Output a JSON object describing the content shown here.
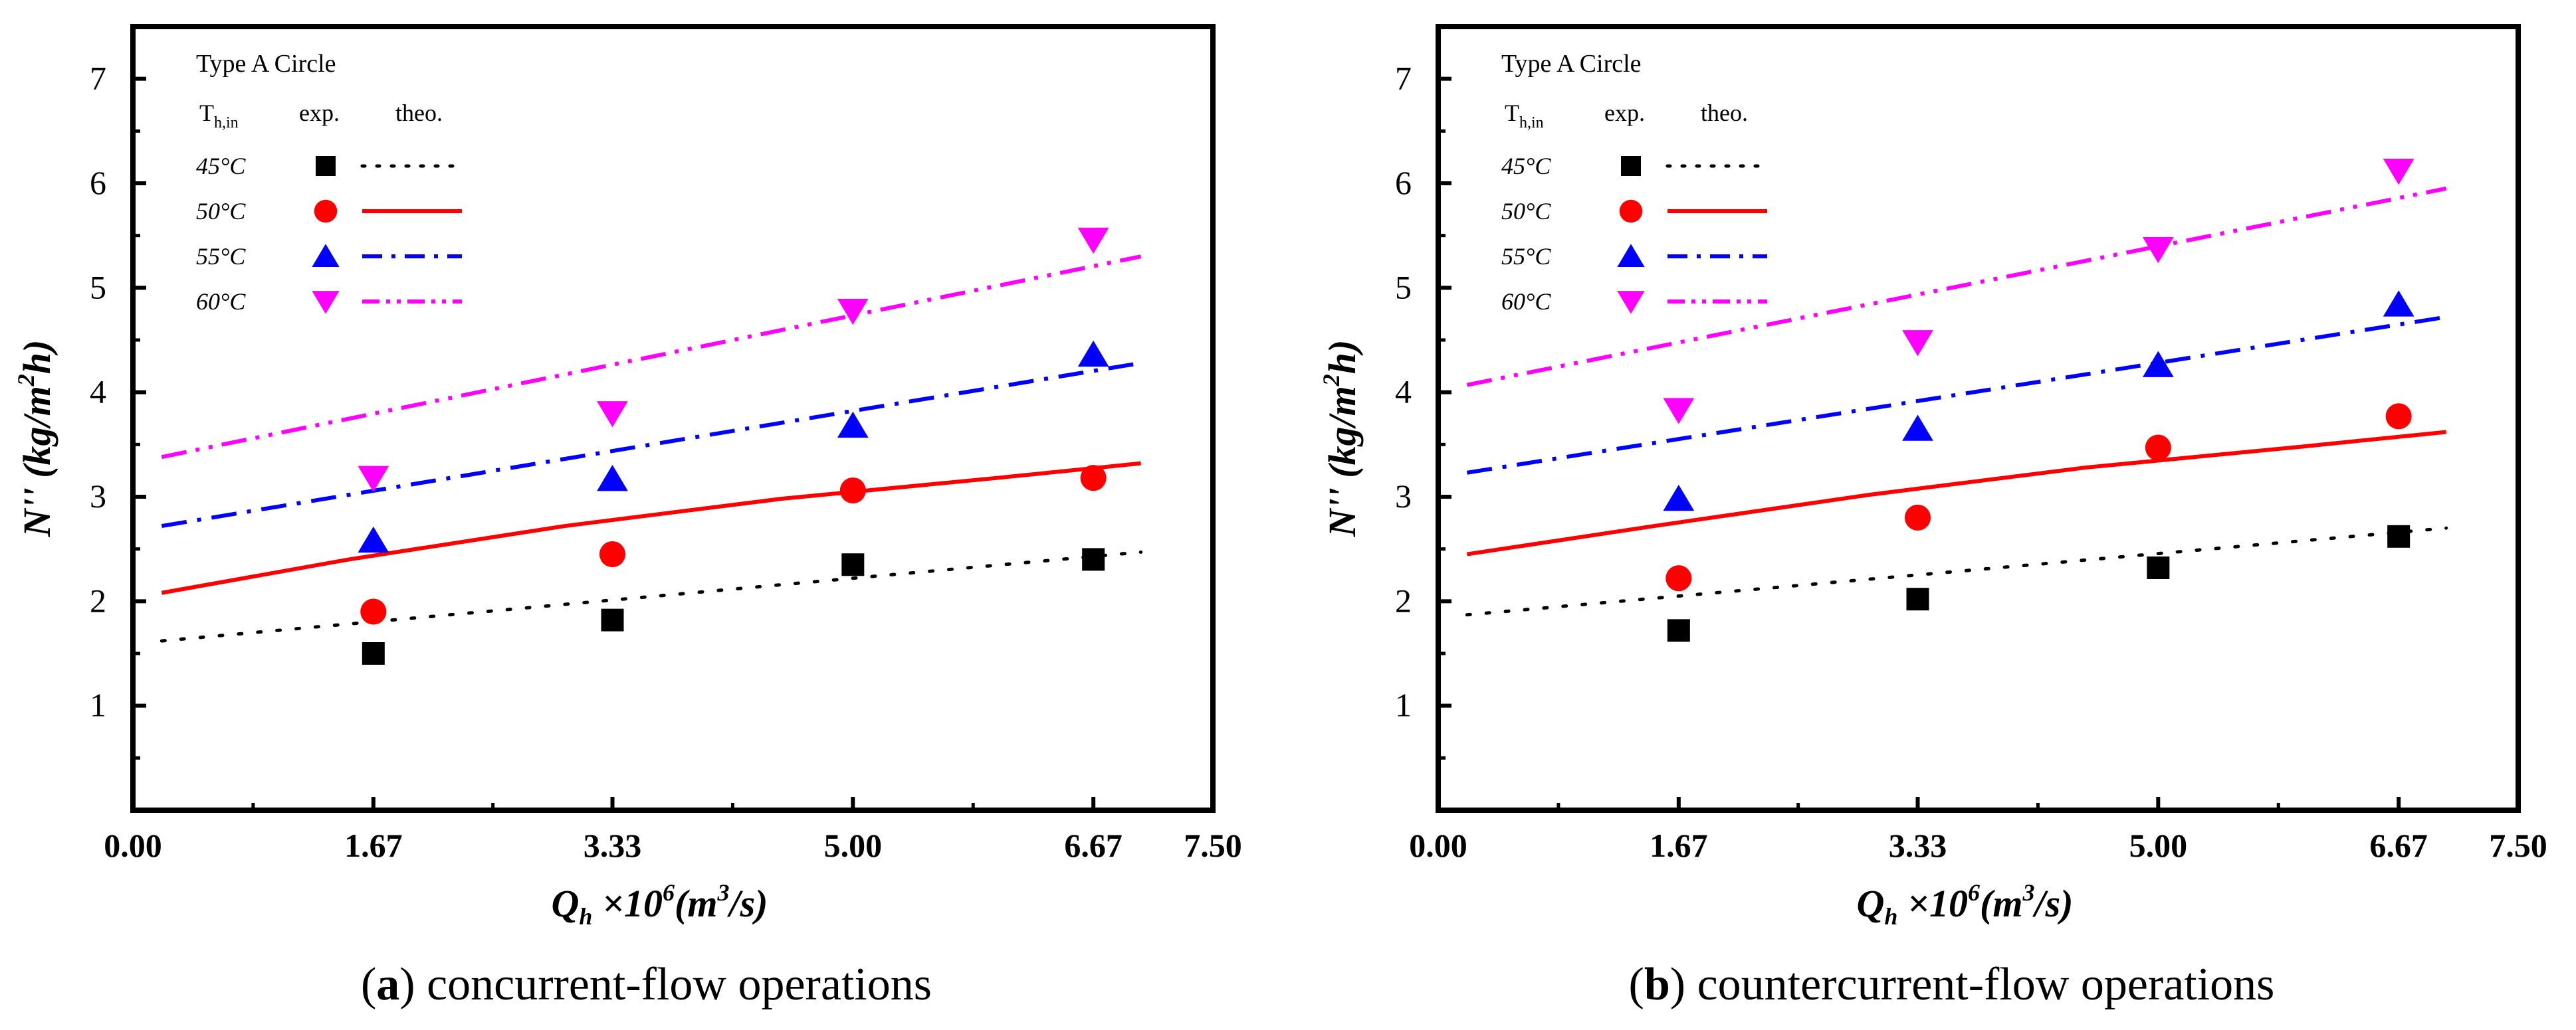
{
  "charts": [
    {
      "id": "a",
      "caption_letter": "a",
      "caption_text": " concurrent-flow operations",
      "panel_title": "Type A Circle",
      "legend": {
        "col_temp_main": "T",
        "col_temp_sub": "h,in",
        "col_exp": "exp.",
        "col_theo": "theo."
      },
      "chart_data": {
        "type": "scatter",
        "xlabel_main": "Q",
        "xlabel_sub": "h",
        "xlabel_rest1": " ×10",
        "xlabel_sup": "6",
        "xlabel_rest2": "(m",
        "xlabel_sup2": "3",
        "xlabel_rest3": "/s)",
        "ylabel_main": "N'' (kg/m",
        "ylabel_sup": "2",
        "ylabel_rest": "h)",
        "xlim": [
          0,
          7.5
        ],
        "ylim": [
          0,
          7.5
        ],
        "x_ticks": [
          {
            "value": 0,
            "label": "0.00"
          },
          {
            "value": 1.67,
            "label": "1.67"
          },
          {
            "value": 3.33,
            "label": "3.33"
          },
          {
            "value": 5.0,
            "label": "5.00"
          },
          {
            "value": 6.67,
            "label": "6.67"
          },
          {
            "value": 7.5,
            "label": "7.50"
          }
        ],
        "y_ticks": [
          {
            "value": 1,
            "label": "1"
          },
          {
            "value": 2,
            "label": "2"
          },
          {
            "value": 3,
            "label": "3"
          },
          {
            "value": 4,
            "label": "4"
          },
          {
            "value": 5,
            "label": "5"
          },
          {
            "value": 6,
            "label": "6"
          },
          {
            "value": 7,
            "label": "7"
          }
        ],
        "series": [
          {
            "name": "45°C",
            "color": "#000000",
            "marker": "square",
            "line": "dotted",
            "x": [
              1.67,
              3.33,
              5.0,
              6.67
            ],
            "values": [
              1.5,
              1.82,
              2.35,
              2.4
            ],
            "theo": [
              [
                0.2,
                1.62
              ],
              [
                7.0,
                2.47
              ]
            ]
          },
          {
            "name": "50°C",
            "color": "#ff0000",
            "marker": "circle",
            "line": "solid",
            "x": [
              1.67,
              3.33,
              5.0,
              6.67
            ],
            "values": [
              1.9,
              2.45,
              3.06,
              3.18
            ],
            "theo": [
              [
                0.2,
                2.08
              ],
              [
                1.5,
                2.4
              ],
              [
                3.0,
                2.72
              ],
              [
                4.5,
                2.98
              ],
              [
                6.0,
                3.18
              ],
              [
                7.0,
                3.32
              ]
            ]
          },
          {
            "name": "55°C",
            "color": "#0000ff",
            "marker": "triangle-up",
            "line": "dashdot",
            "x": [
              1.67,
              3.33,
              5.0,
              6.67
            ],
            "values": [
              2.58,
              3.17,
              3.68,
              4.36
            ],
            "theo": [
              [
                0.2,
                2.72
              ],
              [
                7.0,
                4.28
              ]
            ]
          },
          {
            "name": "60°C",
            "color": "#ff00ff",
            "marker": "triangle-down",
            "line": "dashdotdot",
            "x": [
              1.67,
              3.33,
              5.0,
              6.67
            ],
            "values": [
              3.18,
              3.8,
              4.78,
              5.46
            ],
            "theo": [
              [
                0.2,
                3.38
              ],
              [
                7.0,
                5.3
              ]
            ]
          }
        ]
      }
    },
    {
      "id": "b",
      "caption_letter": "b",
      "caption_text": " countercurrent-flow operations",
      "panel_title": "Type A Circle",
      "legend": {
        "col_temp_main": "T",
        "col_temp_sub": "h,in",
        "col_exp": "exp.",
        "col_theo": "theo."
      },
      "chart_data": {
        "type": "scatter",
        "xlabel_main": "Q",
        "xlabel_sub": "h",
        "xlabel_rest1": " ×10",
        "xlabel_sup": "6",
        "xlabel_rest2": "(m",
        "xlabel_sup2": "3",
        "xlabel_rest3": "/s)",
        "ylabel_main": "N'' (kg/m",
        "ylabel_sup": "2",
        "ylabel_rest": "h)",
        "xlim": [
          0,
          7.5
        ],
        "ylim": [
          0,
          7.5
        ],
        "x_ticks": [
          {
            "value": 0,
            "label": "0.00"
          },
          {
            "value": 1.67,
            "label": "1.67"
          },
          {
            "value": 3.33,
            "label": "3.33"
          },
          {
            "value": 5.0,
            "label": "5.00"
          },
          {
            "value": 6.67,
            "label": "6.67"
          },
          {
            "value": 7.5,
            "label": "7.50"
          }
        ],
        "y_ticks": [
          {
            "value": 1,
            "label": "1"
          },
          {
            "value": 2,
            "label": "2"
          },
          {
            "value": 3,
            "label": "3"
          },
          {
            "value": 4,
            "label": "4"
          },
          {
            "value": 5,
            "label": "5"
          },
          {
            "value": 6,
            "label": "6"
          },
          {
            "value": 7,
            "label": "7"
          }
        ],
        "series": [
          {
            "name": "45°C",
            "color": "#000000",
            "marker": "square",
            "line": "dotted",
            "x": [
              1.67,
              3.33,
              5.0,
              6.67
            ],
            "values": [
              1.72,
              2.02,
              2.32,
              2.62
            ],
            "theo": [
              [
                0.2,
                1.87
              ],
              [
                7.0,
                2.7
              ]
            ]
          },
          {
            "name": "50°C",
            "color": "#ff0000",
            "marker": "circle",
            "line": "solid",
            "x": [
              1.67,
              3.33,
              5.0,
              6.67
            ],
            "values": [
              2.22,
              2.8,
              3.47,
              3.77
            ],
            "theo": [
              [
                0.2,
                2.45
              ],
              [
                1.5,
                2.72
              ],
              [
                3.0,
                3.02
              ],
              [
                4.5,
                3.28
              ],
              [
                6.0,
                3.48
              ],
              [
                7.0,
                3.62
              ]
            ]
          },
          {
            "name": "55°C",
            "color": "#0000ff",
            "marker": "triangle-up",
            "line": "dashdot",
            "x": [
              1.67,
              3.33,
              5.0,
              6.67
            ],
            "values": [
              2.98,
              3.65,
              4.26,
              4.84
            ],
            "theo": [
              [
                0.2,
                3.23
              ],
              [
                7.0,
                4.72
              ]
            ]
          },
          {
            "name": "60°C",
            "color": "#ff00ff",
            "marker": "triangle-down",
            "line": "dashdotdot",
            "x": [
              1.67,
              3.33,
              5.0,
              6.67
            ],
            "values": [
              3.83,
              4.48,
              5.37,
              6.12
            ],
            "theo": [
              [
                0.2,
                4.07
              ],
              [
                7.0,
                5.95
              ]
            ]
          }
        ]
      }
    }
  ]
}
